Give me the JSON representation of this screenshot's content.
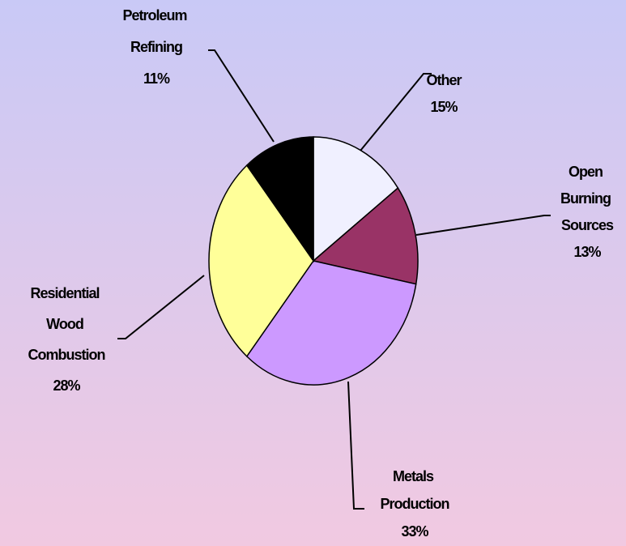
{
  "chart_data": {
    "type": "pie",
    "categories": [
      "Other",
      "Open Burning Sources",
      "Metals Production",
      "Residential Wood Combustion",
      "Petroleum Refining"
    ],
    "values": [
      15,
      13,
      33,
      28,
      11
    ],
    "value_labels": [
      "15%",
      "13%",
      "33%",
      "28%",
      "11%"
    ],
    "colors": [
      "#f0f0ff",
      "#993366",
      "#cc99ff",
      "#ffff99",
      "#000000"
    ]
  }
}
